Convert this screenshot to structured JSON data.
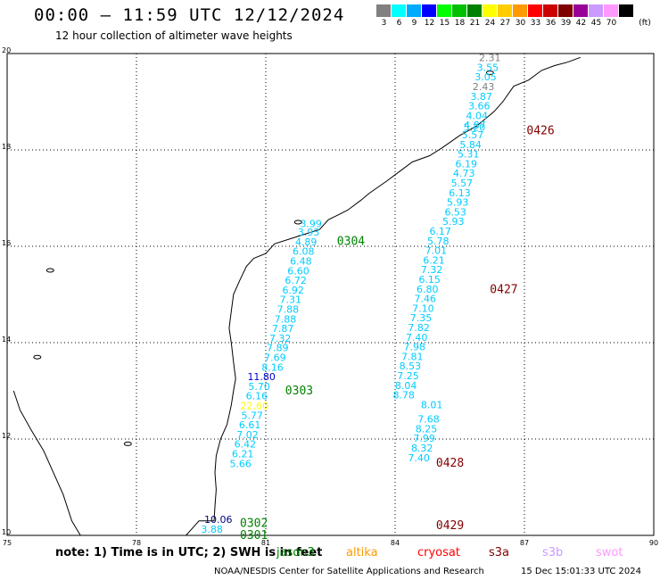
{
  "header": {
    "title": "00:00 – 11:59 UTC 12/12/2024",
    "subtitle": "12 hour collection of altimeter wave heights"
  },
  "legend": {
    "unit": "(ft)",
    "bins": [
      {
        "label": "3",
        "color": "#808080"
      },
      {
        "label": "6",
        "color": "#00ffff"
      },
      {
        "label": "9",
        "color": "#00aaff"
      },
      {
        "label": "12",
        "color": "#0000ff"
      },
      {
        "label": "15",
        "color": "#00ff00"
      },
      {
        "label": "18",
        "color": "#00c000"
      },
      {
        "label": "21",
        "color": "#008000"
      },
      {
        "label": "24",
        "color": "#ffff00"
      },
      {
        "label": "27",
        "color": "#ffcc00"
      },
      {
        "label": "30",
        "color": "#ff9900"
      },
      {
        "label": "33",
        "color": "#ff0000"
      },
      {
        "label": "36",
        "color": "#cc0000"
      },
      {
        "label": "39",
        "color": "#800000"
      },
      {
        "label": "42",
        "color": "#990099"
      },
      {
        "label": "45",
        "color": "#cc99ff"
      },
      {
        "label": "70",
        "color": "#ff99ff"
      },
      {
        "label": "",
        "color": "#000000"
      }
    ]
  },
  "axes": {
    "lon_labels": [
      "75",
      "78",
      "81",
      "84",
      "87",
      "90"
    ],
    "lat_labels": [
      "20",
      "18",
      "16",
      "14",
      "12",
      "10"
    ]
  },
  "tracks": [
    {
      "pass": "0426",
      "pass_color": "#800000",
      "points": [
        {
          "lat": 19.84,
          "value": "2.31",
          "color": "#808080"
        },
        {
          "lat": 19.64,
          "value": "3.55",
          "color": "#00ccff"
        },
        {
          "lat": 19.44,
          "value": "3.05",
          "color": "#00ccff"
        },
        {
          "lat": 19.24,
          "value": "2.43",
          "color": "#808080"
        },
        {
          "lat": 19.04,
          "value": "3.87",
          "color": "#00ccff"
        },
        {
          "lat": 18.84,
          "value": "3.66",
          "color": "#00ccff"
        },
        {
          "lat": 18.64,
          "value": "4.04",
          "color": "#00ccff"
        },
        {
          "lat": 18.44,
          "value": "4.87",
          "color": "#00ccff"
        },
        {
          "lat": 18.4,
          "value": "5.20",
          "color": "#00ccff"
        },
        {
          "lat": 18.24,
          "value": "5.57",
          "color": "#00ccff"
        },
        {
          "lat": 18.04,
          "value": "5.84",
          "color": "#00ccff"
        },
        {
          "lat": 17.84,
          "value": "5.31",
          "color": "#00ccff"
        },
        {
          "lat": 17.64,
          "value": "6.19",
          "color": "#00ccff"
        },
        {
          "lat": 17.44,
          "value": "4.73",
          "color": "#00ccff"
        },
        {
          "lat": 17.24,
          "value": "5.57",
          "color": "#00ccff"
        },
        {
          "lat": 17.04,
          "value": "6.13",
          "color": "#00ccff"
        },
        {
          "lat": 16.84,
          "value": "5.93",
          "color": "#00ccff"
        },
        {
          "lat": 16.64,
          "value": "6.53",
          "color": "#00ccff"
        },
        {
          "lat": 16.44,
          "value": "5.93",
          "color": "#00ccff"
        }
      ]
    },
    {
      "pass": "0427",
      "pass_color": "#800000",
      "points": [
        {
          "lat": 16.24,
          "value": "6.17",
          "color": "#00ccff"
        },
        {
          "lat": 16.04,
          "value": "5.78",
          "color": "#00ccff"
        },
        {
          "lat": 15.84,
          "value": "7.01",
          "color": "#00ccff"
        },
        {
          "lat": 15.64,
          "value": "6.21",
          "color": "#00ccff"
        },
        {
          "lat": 15.44,
          "value": "7.32",
          "color": "#00ccff"
        },
        {
          "lat": 15.24,
          "value": "6.15",
          "color": "#00ccff"
        },
        {
          "lat": 15.04,
          "value": "6.80",
          "color": "#00ccff"
        },
        {
          "lat": 14.84,
          "value": "7.46",
          "color": "#00ccff"
        },
        {
          "lat": 14.64,
          "value": "7.10",
          "color": "#00ccff"
        },
        {
          "lat": 14.44,
          "value": "7.35",
          "color": "#00ccff"
        },
        {
          "lat": 14.24,
          "value": "7.82",
          "color": "#00ccff"
        },
        {
          "lat": 14.04,
          "value": "7.40",
          "color": "#00ccff"
        },
        {
          "lat": 13.84,
          "value": "7.98",
          "color": "#00ccff"
        },
        {
          "lat": 13.64,
          "value": "7.81",
          "color": "#00ccff"
        },
        {
          "lat": 13.44,
          "value": "8.53",
          "color": "#00ccff"
        },
        {
          "lat": 13.24,
          "value": "7.25",
          "color": "#00ccff"
        },
        {
          "lat": 13.04,
          "value": "8.04",
          "color": "#00ccff"
        },
        {
          "lat": 12.84,
          "value": "8.78",
          "color": "#00ccff"
        }
      ]
    },
    {
      "pass": "0428",
      "pass_color": "#800000",
      "points": [
        {
          "lat": 12.64,
          "value": "8.01",
          "color": "#00ccff"
        },
        {
          "lat": 12.34,
          "value": "7.68",
          "color": "#00ccff"
        },
        {
          "lat": 12.14,
          "value": "8.25",
          "color": "#00ccff"
        },
        {
          "lat": 11.94,
          "value": "7.99",
          "color": "#00ccff"
        },
        {
          "lat": 11.74,
          "value": "8.32",
          "color": "#00ccff"
        }
      ]
    },
    {
      "pass": "0429",
      "pass_color": "#800000",
      "points": [
        {
          "lat": 11.54,
          "value": "7.40",
          "color": "#00ccff"
        }
      ]
    },
    {
      "pass": "0304",
      "pass_color": "#008000",
      "points": [
        {
          "lat": 16.4,
          "value": "3.99",
          "color": "#00ccff"
        },
        {
          "lat": 16.22,
          "value": "3.93",
          "color": "#00ccff"
        },
        {
          "lat": 16.02,
          "value": "4.89",
          "color": "#00ccff"
        },
        {
          "lat": 15.82,
          "value": "6.08",
          "color": "#00ccff"
        },
        {
          "lat": 15.62,
          "value": "6.48",
          "color": "#00ccff"
        },
        {
          "lat": 15.42,
          "value": "6.60",
          "color": "#00ccff"
        },
        {
          "lat": 15.22,
          "value": "6.72",
          "color": "#00ccff"
        },
        {
          "lat": 15.02,
          "value": "6.92",
          "color": "#00ccff"
        },
        {
          "lat": 14.82,
          "value": "7.31",
          "color": "#00ccff"
        },
        {
          "lat": 14.62,
          "value": "7.88",
          "color": "#00ccff"
        },
        {
          "lat": 14.42,
          "value": "7.88",
          "color": "#00ccff"
        },
        {
          "lat": 14.22,
          "value": "7.87",
          "color": "#00ccff"
        },
        {
          "lat": 14.02,
          "value": "7.32",
          "color": "#00ccff"
        },
        {
          "lat": 13.82,
          "value": "7.89",
          "color": "#00ccff"
        },
        {
          "lat": 13.62,
          "value": "7.69",
          "color": "#00ccff"
        },
        {
          "lat": 13.42,
          "value": "8.16",
          "color": "#00ccff"
        }
      ]
    },
    {
      "pass": "0303",
      "pass_color": "#008000",
      "points": [
        {
          "lat": 13.22,
          "value": "11.80",
          "color": "#0000cc"
        },
        {
          "lat": 13.02,
          "value": "5.70",
          "color": "#00ccff"
        },
        {
          "lat": 12.82,
          "value": "6.16",
          "color": "#00ccff"
        },
        {
          "lat": 12.62,
          "value": "22.60",
          "color": "#ffff00"
        },
        {
          "lat": 12.42,
          "value": "5.77",
          "color": "#00ccff"
        },
        {
          "lat": 12.22,
          "value": "6.61",
          "color": "#00ccff"
        },
        {
          "lat": 12.02,
          "value": "7.02",
          "color": "#00ccff"
        },
        {
          "lat": 11.82,
          "value": "6.42",
          "color": "#00ccff"
        },
        {
          "lat": 11.62,
          "value": "6.21",
          "color": "#00ccff"
        },
        {
          "lat": 11.42,
          "value": "5.66",
          "color": "#00ccff"
        }
      ]
    },
    {
      "pass": "0302",
      "pass_color": "#008000",
      "points": [
        {
          "lat": 10.26,
          "value": "10.06",
          "color": "#000080"
        }
      ]
    },
    {
      "pass": "0301",
      "pass_color": "#008000",
      "points": [
        {
          "lat": 10.06,
          "value": "3.88",
          "color": "#00ccff"
        }
      ]
    }
  ],
  "footer": {
    "note": "note:  1) Time is in UTC;  2) SWH is in feet",
    "missions": [
      {
        "name": "jason3",
        "color": "#008000"
      },
      {
        "name": "altika",
        "color": "#ff9900"
      },
      {
        "name": "cryosat",
        "color": "#ff0000"
      },
      {
        "name": "s3a",
        "color": "#800000"
      },
      {
        "name": "s3b",
        "color": "#cc99ff"
      },
      {
        "name": "swot",
        "color": "#ff99ff"
      }
    ],
    "credit": "NOAA/NESDIS Center for Satellite Applications and Research",
    "timestamp": "15 Dec 15:01:33 UTC 2024"
  }
}
